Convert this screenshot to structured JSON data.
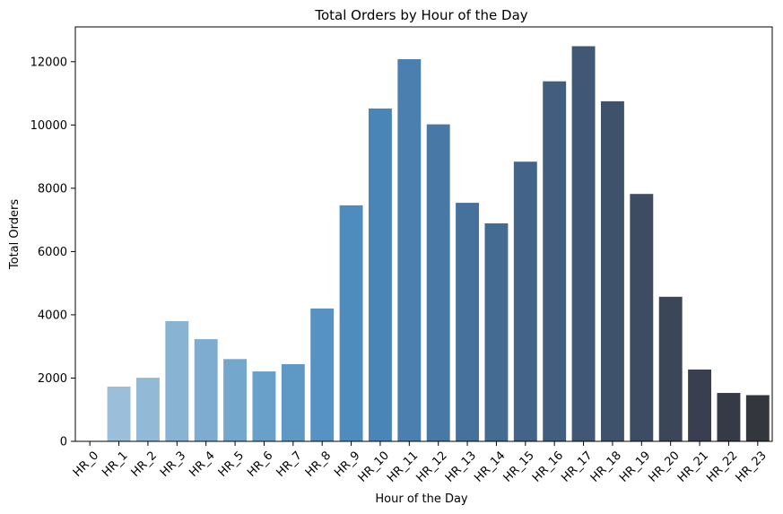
{
  "chart_data": {
    "type": "bar",
    "title": "Total Orders by Hour of the Day",
    "xlabel": "Hour of the Day",
    "ylabel": "Total Orders",
    "categories": [
      "HR_0",
      "HR_1",
      "HR_2",
      "HR_3",
      "HR_4",
      "HR_5",
      "HR_6",
      "HR_7",
      "HR_8",
      "HR_9",
      "HR_10",
      "HR_11",
      "HR_12",
      "HR_13",
      "HR_14",
      "HR_15",
      "HR_16",
      "HR_17",
      "HR_18",
      "HR_19",
      "HR_20",
      "HR_21",
      "HR_22",
      "HR_23"
    ],
    "values": [
      0,
      1730,
      2010,
      3800,
      3230,
      2600,
      2210,
      2440,
      4200,
      7460,
      10520,
      12080,
      10020,
      7540,
      6890,
      8840,
      11380,
      12490,
      10750,
      7820,
      4570,
      2270,
      1530,
      1460
    ],
    "ylim": [
      0,
      13100
    ],
    "yticks": [
      0,
      2000,
      4000,
      6000,
      8000,
      10000,
      12000
    ],
    "grid": false,
    "legend": "none",
    "palette": [
      "#a3c4dd",
      "#9bbfda",
      "#92b9d6",
      "#88b3d3",
      "#7eacd0",
      "#74a7cc",
      "#69a0c9",
      "#5e99c5",
      "#5693c2",
      "#4e8cbd",
      "#4a85b8",
      "#4a7fb0",
      "#4878a6",
      "#46719c",
      "#446b92",
      "#426488",
      "#415e7f",
      "#405875",
      "#3f526b",
      "#3d4c62",
      "#3b4659",
      "#393f50",
      "#363a47",
      "#33363c"
    ],
    "tick_rotation": "45-degrees"
  }
}
